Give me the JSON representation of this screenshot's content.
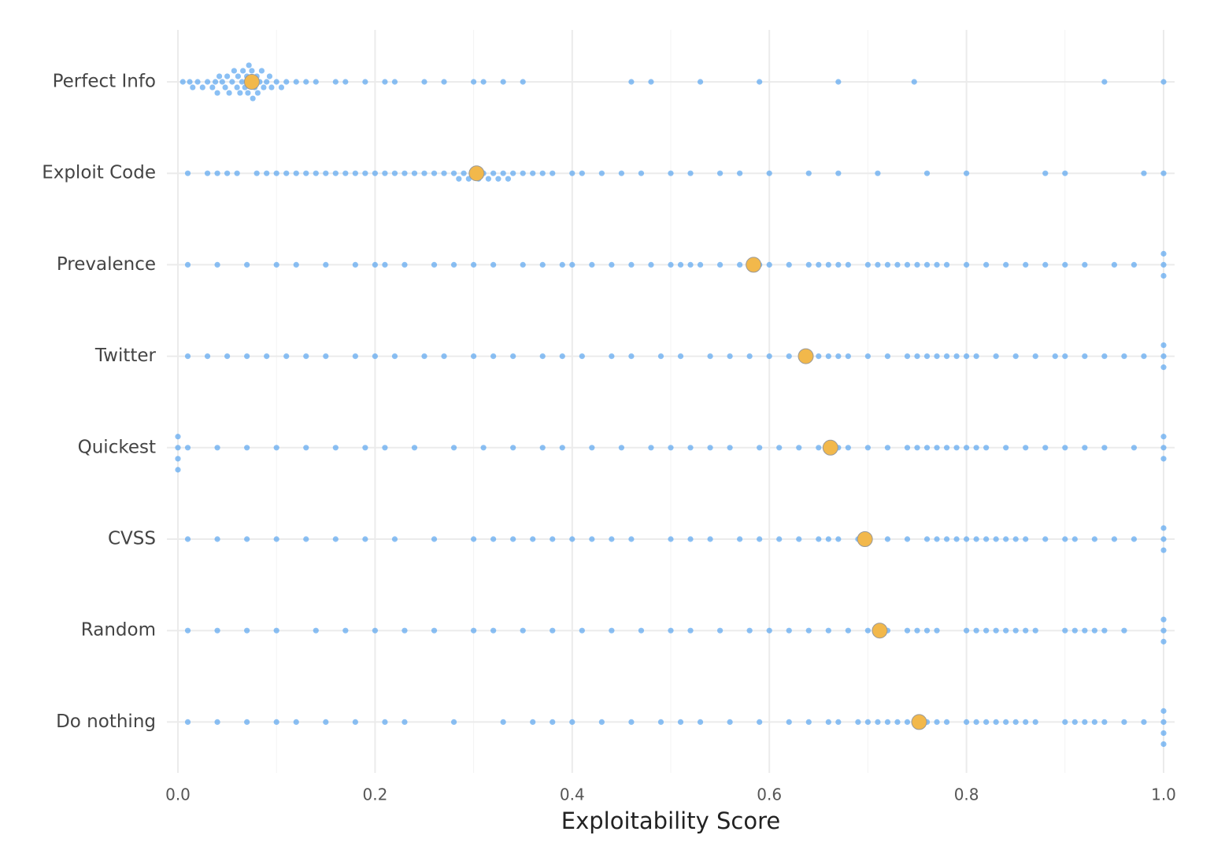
{
  "chart_data": {
    "type": "beeswarm",
    "xlabel": "Exploitability Score",
    "categories": [
      "Perfect Info",
      "Exploit Code",
      "Prevalence",
      "Twitter",
      "Quickest",
      "CVSS",
      "Random",
      "Do nothing"
    ],
    "point_color": "#5aa5f0",
    "mean_color": "#f2b84b",
    "xlim": [
      0,
      1
    ],
    "xticks": [
      {
        "value": 0,
        "label": "0.0"
      },
      {
        "value": 0.2,
        "label": "0.2"
      },
      {
        "value": 0.4,
        "label": "0.4"
      },
      {
        "value": 0.6,
        "label": "0.6"
      },
      {
        "value": 0.8,
        "label": "0.8"
      },
      {
        "value": 1,
        "label": "1.0"
      }
    ],
    "minor_xticks": [
      0.1,
      0.3,
      0.5,
      0.7,
      0.9
    ],
    "grid": true,
    "means": [
      0.075,
      0.303,
      0.584,
      0.637,
      0.662,
      0.697,
      0.712,
      0.752
    ],
    "values": [
      [
        0.005,
        0.012,
        0.015,
        0.02,
        0.025,
        0.03,
        0.035,
        0.038,
        0.04,
        0.042,
        0.045,
        0.048,
        0.05,
        0.052,
        0.055,
        0.057,
        0.06,
        0.061,
        0.063,
        0.065,
        0.066,
        0.068,
        0.07,
        0.071,
        0.072,
        0.074,
        0.075,
        0.076,
        0.078,
        0.08,
        0.081,
        0.083,
        0.085,
        0.087,
        0.09,
        0.093,
        0.095,
        0.1,
        0.105,
        0.11,
        0.12,
        0.13,
        0.14,
        0.16,
        0.17,
        0.19,
        0.21,
        0.22,
        0.25,
        0.27,
        0.3,
        0.31,
        0.33,
        0.35,
        0.46,
        0.48,
        0.53,
        0.59,
        0.67,
        0.747,
        0.94,
        1.0
      ],
      [
        0.01,
        0.03,
        0.04,
        0.05,
        0.06,
        0.08,
        0.09,
        0.1,
        0.11,
        0.12,
        0.13,
        0.14,
        0.15,
        0.16,
        0.17,
        0.18,
        0.19,
        0.2,
        0.21,
        0.22,
        0.23,
        0.24,
        0.25,
        0.26,
        0.27,
        0.28,
        0.285,
        0.29,
        0.295,
        0.3,
        0.305,
        0.31,
        0.315,
        0.32,
        0.325,
        0.33,
        0.335,
        0.34,
        0.35,
        0.36,
        0.37,
        0.38,
        0.4,
        0.41,
        0.43,
        0.45,
        0.47,
        0.5,
        0.52,
        0.55,
        0.57,
        0.6,
        0.64,
        0.67,
        0.71,
        0.76,
        0.8,
        0.88,
        0.9,
        0.98,
        1.0
      ],
      [
        0.01,
        0.04,
        0.07,
        0.1,
        0.12,
        0.15,
        0.18,
        0.2,
        0.21,
        0.23,
        0.26,
        0.28,
        0.3,
        0.32,
        0.35,
        0.37,
        0.39,
        0.4,
        0.42,
        0.44,
        0.46,
        0.48,
        0.5,
        0.51,
        0.52,
        0.53,
        0.55,
        0.57,
        0.59,
        0.6,
        0.62,
        0.64,
        0.65,
        0.66,
        0.67,
        0.68,
        0.7,
        0.71,
        0.72,
        0.73,
        0.74,
        0.75,
        0.76,
        0.77,
        0.78,
        0.8,
        0.82,
        0.84,
        0.86,
        0.88,
        0.9,
        0.92,
        0.95,
        0.97,
        1.0,
        1.0,
        1.0
      ],
      [
        0.01,
        0.03,
        0.05,
        0.07,
        0.09,
        0.11,
        0.13,
        0.15,
        0.18,
        0.2,
        0.22,
        0.25,
        0.27,
        0.3,
        0.32,
        0.34,
        0.37,
        0.39,
        0.41,
        0.44,
        0.46,
        0.49,
        0.51,
        0.54,
        0.56,
        0.58,
        0.6,
        0.62,
        0.64,
        0.65,
        0.66,
        0.67,
        0.68,
        0.7,
        0.72,
        0.74,
        0.75,
        0.76,
        0.77,
        0.78,
        0.79,
        0.8,
        0.81,
        0.83,
        0.85,
        0.87,
        0.89,
        0.9,
        0.92,
        0.94,
        0.96,
        0.98,
        1.0,
        1.0,
        1.0
      ],
      [
        0.0,
        0.0,
        0.0,
        0.0,
        0.01,
        0.04,
        0.07,
        0.1,
        0.13,
        0.16,
        0.19,
        0.21,
        0.24,
        0.28,
        0.31,
        0.34,
        0.37,
        0.39,
        0.42,
        0.45,
        0.48,
        0.5,
        0.52,
        0.54,
        0.56,
        0.59,
        0.61,
        0.63,
        0.65,
        0.66,
        0.67,
        0.68,
        0.7,
        0.72,
        0.74,
        0.75,
        0.76,
        0.77,
        0.78,
        0.79,
        0.8,
        0.81,
        0.82,
        0.84,
        0.86,
        0.88,
        0.9,
        0.92,
        0.94,
        0.97,
        1.0,
        1.0,
        1.0
      ],
      [
        0.01,
        0.04,
        0.07,
        0.1,
        0.13,
        0.16,
        0.19,
        0.22,
        0.26,
        0.3,
        0.32,
        0.34,
        0.36,
        0.38,
        0.4,
        0.42,
        0.44,
        0.46,
        0.5,
        0.52,
        0.54,
        0.57,
        0.59,
        0.61,
        0.63,
        0.65,
        0.66,
        0.67,
        0.69,
        0.7,
        0.72,
        0.74,
        0.76,
        0.77,
        0.78,
        0.79,
        0.8,
        0.81,
        0.82,
        0.83,
        0.84,
        0.85,
        0.86,
        0.88,
        0.9,
        0.91,
        0.93,
        0.95,
        0.97,
        1.0,
        1.0,
        1.0
      ],
      [
        0.01,
        0.04,
        0.07,
        0.1,
        0.14,
        0.17,
        0.2,
        0.23,
        0.26,
        0.3,
        0.32,
        0.35,
        0.38,
        0.41,
        0.44,
        0.47,
        0.5,
        0.52,
        0.55,
        0.58,
        0.6,
        0.62,
        0.64,
        0.66,
        0.68,
        0.7,
        0.71,
        0.72,
        0.74,
        0.75,
        0.76,
        0.77,
        0.8,
        0.81,
        0.82,
        0.83,
        0.84,
        0.85,
        0.86,
        0.87,
        0.9,
        0.91,
        0.92,
        0.93,
        0.94,
        0.96,
        1.0,
        1.0,
        1.0
      ],
      [
        0.01,
        0.04,
        0.07,
        0.1,
        0.12,
        0.15,
        0.18,
        0.21,
        0.23,
        0.28,
        0.33,
        0.36,
        0.38,
        0.4,
        0.43,
        0.46,
        0.49,
        0.51,
        0.53,
        0.56,
        0.59,
        0.62,
        0.64,
        0.66,
        0.67,
        0.69,
        0.7,
        0.71,
        0.72,
        0.73,
        0.74,
        0.75,
        0.76,
        0.77,
        0.78,
        0.8,
        0.81,
        0.82,
        0.83,
        0.84,
        0.85,
        0.86,
        0.87,
        0.9,
        0.91,
        0.92,
        0.93,
        0.94,
        0.96,
        0.98,
        1.0,
        1.0,
        1.0,
        1.0
      ]
    ]
  }
}
